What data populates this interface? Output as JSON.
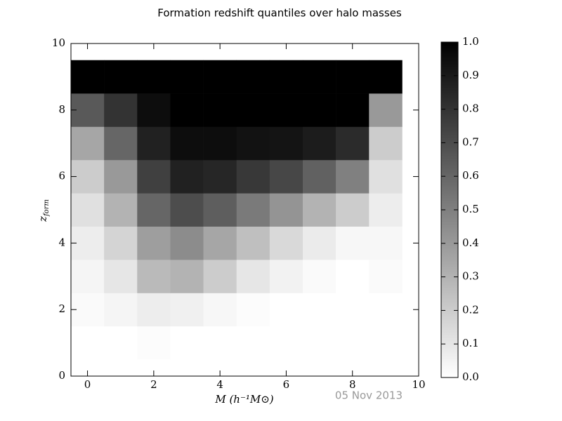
{
  "chart_data": {
    "type": "heatmap",
    "title": "Formation redshift quantiles over halo masses",
    "xlabel": "M (h⁻¹M⊙)",
    "ylabel": [
      "z",
      "form"
    ],
    "annotation": "05 Nov 2013",
    "x": [
      0,
      1,
      2,
      3,
      4,
      5,
      6,
      7,
      8,
      9
    ],
    "y": [
      0,
      1,
      2,
      3,
      4,
      5,
      6,
      7,
      8,
      9
    ],
    "z": [
      [
        0,
        0,
        0,
        0,
        0,
        0,
        0,
        0,
        0,
        0
      ],
      [
        0,
        0,
        0.01,
        0,
        0,
        0,
        0,
        0,
        0,
        0
      ],
      [
        0.02,
        0.04,
        0.07,
        0.06,
        0.03,
        0.01,
        0,
        0,
        0,
        0
      ],
      [
        0.04,
        0.1,
        0.27,
        0.3,
        0.2,
        0.1,
        0.05,
        0.02,
        0,
        0.02
      ],
      [
        0.07,
        0.17,
        0.38,
        0.45,
        0.35,
        0.25,
        0.15,
        0.08,
        0.03,
        0.03
      ],
      [
        0.12,
        0.3,
        0.6,
        0.7,
        0.63,
        0.52,
        0.42,
        0.3,
        0.2,
        0.07
      ],
      [
        0.2,
        0.4,
        0.75,
        0.87,
        0.85,
        0.78,
        0.72,
        0.62,
        0.5,
        0.12
      ],
      [
        0.35,
        0.6,
        0.87,
        0.95,
        0.95,
        0.93,
        0.92,
        0.89,
        0.83,
        0.2
      ],
      [
        0.65,
        0.8,
        0.95,
        1,
        1,
        1,
        1,
        1,
        1,
        0.4
      ],
      [
        1,
        1,
        1,
        1,
        1,
        1,
        1,
        1,
        1,
        1
      ]
    ],
    "xlim": [
      -0.5,
      10
    ],
    "ylim": [
      0,
      10
    ],
    "xticks": [
      0,
      2,
      4,
      6,
      8,
      10
    ],
    "yticks": [
      0,
      2,
      4,
      6,
      8,
      10
    ],
    "zlim": [
      0,
      1
    ],
    "colormap": "gray_r",
    "zticks": [
      {
        "value": 0,
        "label": "0.0"
      },
      {
        "value": 0.1,
        "label": "0.1"
      },
      {
        "value": 0.2,
        "label": "0.2"
      },
      {
        "value": 0.3,
        "label": "0.3"
      },
      {
        "value": 0.4,
        "label": "0.4"
      },
      {
        "value": 0.5,
        "label": "0.5"
      },
      {
        "value": 0.6,
        "label": "0.6"
      },
      {
        "value": 0.7,
        "label": "0.7"
      },
      {
        "value": 0.8,
        "label": "0.8"
      },
      {
        "value": 0.9,
        "label": "0.9"
      },
      {
        "value": 1,
        "label": "1.0"
      }
    ]
  }
}
